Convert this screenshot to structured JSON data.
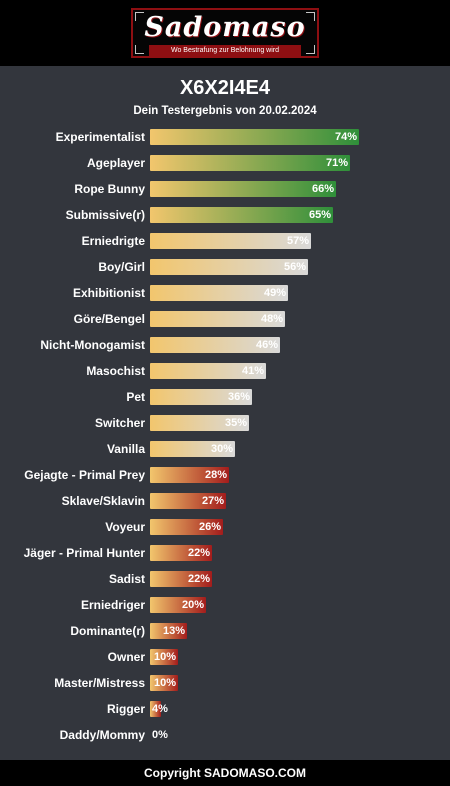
{
  "header": {
    "logo_text": "Sadomaso",
    "slogan": "Wo Bestrafung zur Belohnung wird"
  },
  "title": "X6X2I4E4",
  "subtitle": "Dein Testergebnis von 20.02.2024",
  "footer": "Copyright SADOMASO.COM",
  "colors": {
    "background": "#33363d",
    "high": "#2f8f3a",
    "mid": "#d9d9d9",
    "low": "#a31c1c",
    "start": "#f2c66d"
  },
  "chart_data": {
    "type": "bar",
    "orientation": "horizontal",
    "categories": [
      "Experimentalist",
      "Ageplayer",
      "Rope Bunny",
      "Submissive(r)",
      "Erniedrigte",
      "Boy/Girl",
      "Exhibitionist",
      "Göre/Bengel",
      "Nicht-Monogamist",
      "Masochist",
      "Pet",
      "Switcher",
      "Vanilla",
      "Gejagte - Primal Prey",
      "Sklave/Sklavin",
      "Voyeur",
      "Jäger - Primal Hunter",
      "Sadist",
      "Erniedriger",
      "Dominante(r)",
      "Owner",
      "Master/Mistress",
      "Rigger",
      "Daddy/Mommy"
    ],
    "values": [
      74,
      71,
      66,
      65,
      57,
      56,
      49,
      48,
      46,
      41,
      36,
      35,
      30,
      28,
      27,
      26,
      22,
      22,
      20,
      13,
      10,
      10,
      4,
      0
    ],
    "value_labels": [
      "74%",
      "71%",
      "66%",
      "65%",
      "57%",
      "56%",
      "49%",
      "48%",
      "46%",
      "41%",
      "36%",
      "35%",
      "30%",
      "28%",
      "27%",
      "26%",
      "22%",
      "22%",
      "20%",
      "13%",
      "10%",
      "10%",
      "4%",
      "0%"
    ],
    "tier": [
      "high",
      "high",
      "high",
      "high",
      "mid",
      "mid",
      "mid",
      "mid",
      "mid",
      "mid",
      "mid",
      "mid",
      "mid",
      "low",
      "low",
      "low",
      "low",
      "low",
      "low",
      "low",
      "low",
      "low",
      "low",
      "low"
    ],
    "xlim": [
      0,
      100
    ]
  }
}
